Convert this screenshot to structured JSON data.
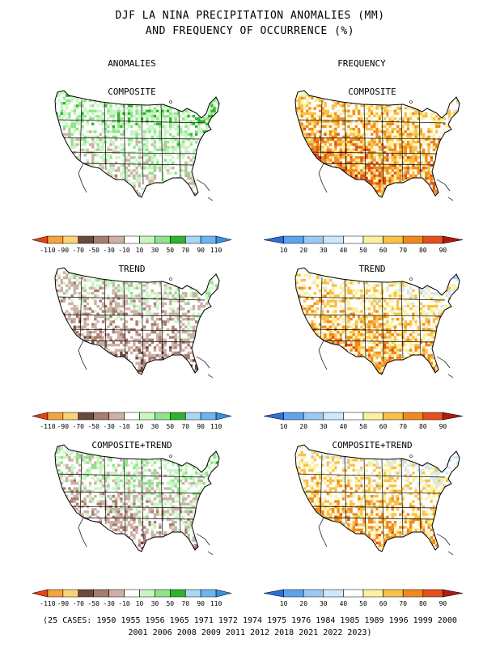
{
  "header": {
    "title_line1": "DJF LA NINA PRECIPITATION ANOMALIES (MM)",
    "title_line2": "AND FREQUENCY OF OCCURRENCE (%)",
    "col_left": "ANOMALIES",
    "col_right": "FREQUENCY"
  },
  "panels": {
    "row1": "COMPOSITE",
    "row2": "TREND",
    "row3": "COMPOSITE+TREND"
  },
  "anomaly_legend": {
    "labels": [
      "-110",
      "-90",
      "-70",
      "-50",
      "-30",
      "-10",
      "10",
      "30",
      "50",
      "70",
      "90",
      "110"
    ],
    "colors": [
      "#e8420e",
      "#f7a23c",
      "#f9d27a",
      "#6b4a3e",
      "#a87c6e",
      "#cdb0a6",
      "#ffffff",
      "#c8f5c2",
      "#8fe38a",
      "#2fb52b",
      "#a7d9f7",
      "#6bb6f0",
      "#3b8fe4"
    ]
  },
  "frequency_legend": {
    "labels": [
      "10",
      "20",
      "30",
      "40",
      "50",
      "60",
      "70",
      "80",
      "90"
    ],
    "colors": [
      "#2a6ee0",
      "#5da3ee",
      "#9cc9f4",
      "#cfe7fb",
      "#ffffff",
      "#fbf0a0",
      "#f7c14a",
      "#f08a1e",
      "#e2521a",
      "#b01a10"
    ]
  },
  "footer": {
    "line1": "(25 CASES:  1950 1955 1956 1965 1971 1972 1974 1975 1976 1984 1985 1989 1996 1999 2000",
    "line2": "2001 2006 2008 2009 2011 2012 2018 2021 2022 2023)"
  }
}
